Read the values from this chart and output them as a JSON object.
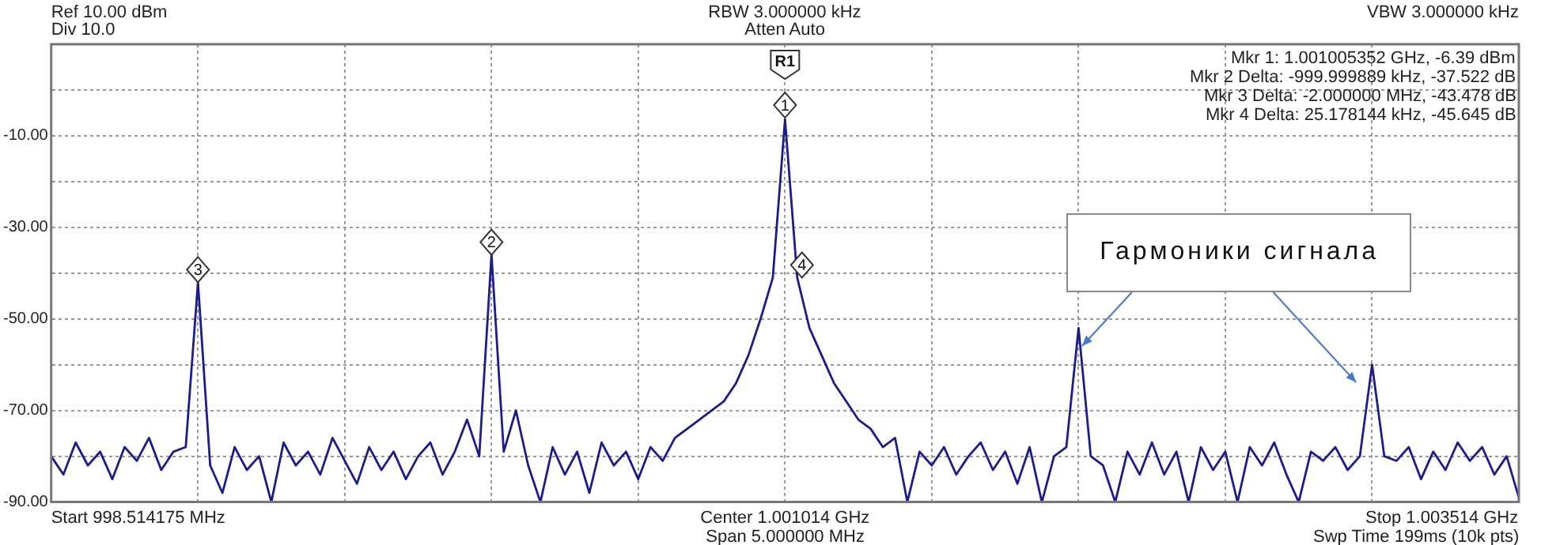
{
  "chart_data": {
    "type": "line",
    "grid": true,
    "categories": [
      null,
      null,
      null,
      null,
      null,
      null,
      null,
      null,
      null,
      null,
      null,
      null,
      null,
      null,
      null,
      null,
      null,
      null,
      null,
      null,
      null,
      null,
      null,
      null,
      null,
      null,
      null,
      null,
      null,
      null,
      null,
      null,
      null,
      null,
      null,
      null,
      null,
      null,
      null,
      null,
      null,
      null,
      null,
      null,
      null,
      null,
      null,
      null,
      null,
      null,
      null,
      null,
      null,
      null,
      null,
      null,
      null,
      null,
      null,
      null,
      null,
      null,
      null,
      null,
      null,
      null,
      null,
      null,
      null,
      null,
      null,
      null,
      null,
      null,
      null,
      null,
      null,
      null,
      null,
      null,
      null,
      null,
      null,
      null,
      null,
      null,
      null,
      null,
      null,
      null,
      null,
      null,
      null,
      null,
      null,
      null,
      null,
      null,
      null,
      null,
      null,
      null,
      null,
      null,
      null,
      null,
      null,
      null,
      null,
      null,
      null,
      null,
      null,
      null,
      null,
      null,
      null,
      null,
      null,
      null,
      null
    ],
    "ylim": [
      -90,
      10
    ],
    "yticks": [
      {
        "value": -90,
        "label": "-90.00"
      },
      {
        "value": -80,
        "label": null
      },
      {
        "value": -70,
        "label": "-70.00"
      },
      {
        "value": -60,
        "label": null
      },
      {
        "value": -50,
        "label": "-50.00"
      },
      {
        "value": -40,
        "label": null
      },
      {
        "value": -30,
        "label": "-30.00"
      },
      {
        "value": -20,
        "label": null
      },
      {
        "value": -10,
        "label": "-10.00"
      },
      {
        "value": 0,
        "label": null
      },
      {
        "value": 10,
        "label": null
      }
    ],
    "series": [
      {
        "color": "#1c1c8c",
        "values": [
          -80,
          -84,
          -77,
          -82,
          -79,
          -85,
          -78,
          -81,
          -76,
          -83,
          -79,
          -78,
          -42,
          -82,
          -88,
          -78,
          -83,
          -80,
          -90,
          -77,
          -82,
          -79,
          -84,
          -76,
          -81,
          -86,
          -78,
          -83,
          -79,
          -85,
          -80,
          -77,
          -84,
          -79,
          -72,
          -80,
          -36,
          -79,
          -70,
          -82,
          -90,
          -78,
          -84,
          -79,
          -88,
          -77,
          -82,
          -79,
          -85,
          -78,
          -81,
          -76,
          -74,
          -72,
          -70,
          -68,
          -64,
          -58,
          -50,
          -41,
          -6.4,
          -41,
          -52,
          -58,
          -64,
          -68,
          -72,
          -74,
          -78,
          -76,
          -90,
          -79,
          -82,
          -78,
          -84,
          -80,
          -77,
          -83,
          -79,
          -86,
          -78,
          -90,
          -80,
          -78,
          -52,
          -80,
          -82,
          -90,
          -79,
          -84,
          -77,
          -84,
          -79,
          -90,
          -78,
          -83,
          -79,
          -90,
          -78,
          -82,
          -77,
          -84,
          -90,
          -79,
          -81,
          -78,
          -83,
          -80,
          -60,
          -80,
          -81,
          -78,
          -85,
          -79,
          -83,
          -77,
          -81,
          -78,
          -84,
          -80,
          -89
        ]
      }
    ],
    "annotations": [
      "Ref 10.00 dBm",
      "Div 10.0",
      "RBW 3.000000 kHz",
      "Atten Auto",
      "VBW 3.000000 kHz",
      "Mkr 1: 1.001005352 GHz, -6.39 dBm",
      "Mkr 2 Delta: -999.999889 kHz, -37.522 dB",
      "Mkr 3 Delta: -2.000000 MHz, -43.478 dB",
      "Mkr 4 Delta: 25.178144 kHz, -45.645 dB",
      "Start 998.514175 MHz",
      "Center 1.001014 GHz",
      "Span 5.000000 MHz",
      "Stop 1.003514 GHz",
      "Swp Time 199ms (10k pts)",
      "Гармоники сигнала",
      "R1",
      "1",
      "2",
      "3",
      "4"
    ]
  }
}
